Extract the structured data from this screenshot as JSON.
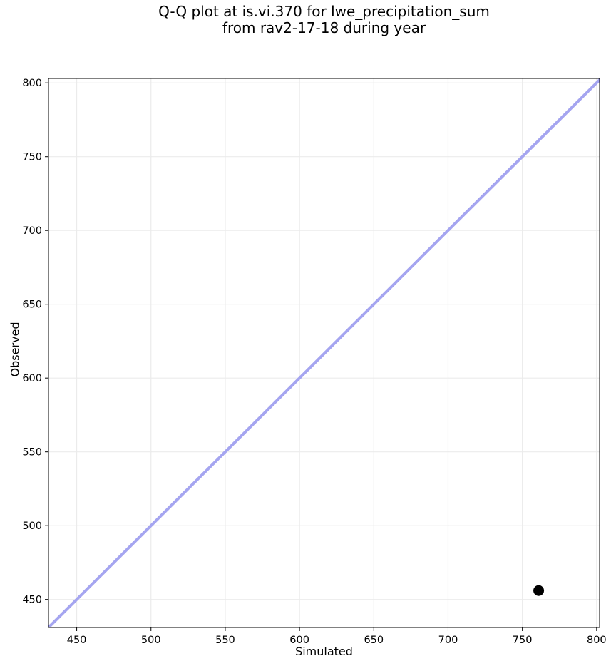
{
  "chart_data": {
    "type": "scatter",
    "title": "Q-Q plot at is.vi.370 for lwe_precipitation_sum\nfrom rav2-17-18 during year",
    "title_lines": [
      "Q-Q plot at is.vi.370 for lwe_precipitation_sum",
      "from rav2-17-18 during year"
    ],
    "xlabel": "Simulated",
    "ylabel": "Observed",
    "xlim": [
      431,
      802
    ],
    "ylim": [
      431,
      803
    ],
    "xticks": [
      450,
      500,
      550,
      600,
      650,
      700,
      750,
      800
    ],
    "yticks": [
      450,
      500,
      550,
      600,
      650,
      700,
      750,
      800
    ],
    "grid": true,
    "legend": "none",
    "series": [
      {
        "name": "identity_line",
        "type": "line",
        "color": "#a5a5f0",
        "line_width": 4,
        "points": [
          [
            431,
            431
          ],
          [
            803,
            803
          ]
        ]
      },
      {
        "name": "quantile_points",
        "type": "scatter",
        "color": "#000000",
        "marker": "circle",
        "marker_radius": 7.5,
        "points": [
          [
            761,
            456
          ]
        ]
      }
    ],
    "colors": {
      "background": "#ffffff",
      "grid": "#ebebeb",
      "spine": "#000000",
      "text": "#000000"
    }
  }
}
